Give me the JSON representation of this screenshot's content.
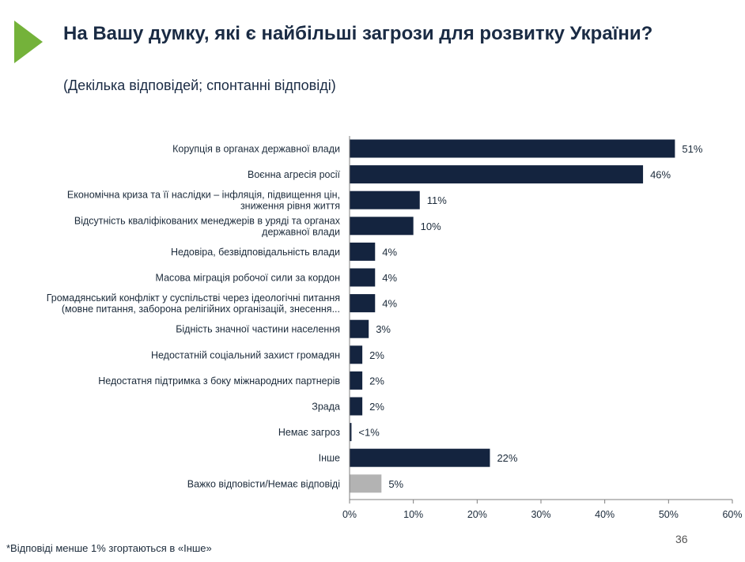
{
  "header": {
    "logo_icon": "green-triangle-arrow-icon",
    "title": "На Вашу думку, які є найбільші загрози для розвитку України?",
    "subtitle": "(Декілька відповідей; спонтанні відповіді)"
  },
  "chart_data": {
    "type": "bar",
    "orientation": "horizontal",
    "title": "",
    "xlabel": "",
    "ylabel": "",
    "xlim": [
      0,
      60
    ],
    "x_ticks": [
      "0%",
      "10%",
      "20%",
      "30%",
      "40%",
      "50%",
      "60%"
    ],
    "grid": false,
    "categories": [
      [
        "Корупція в органах державної влади"
      ],
      [
        "Воєнна агресія росії"
      ],
      [
        "Економічна криза та її наслідки – інфляція, підвищення цін,",
        "зниження рівня життя"
      ],
      [
        "Відсутність кваліфікованих менеджерів в уряді та органах",
        "державної влади"
      ],
      [
        "Недовіра, безвідповідальність влади"
      ],
      [
        "Масова міграція робочої сили за кордон"
      ],
      [
        "Громадянський конфлікт у суспільстві через ідеологічні питання",
        "(мовне питання, заборона релігійних організацій, знесення..."
      ],
      [
        "Бідність значної частини населення"
      ],
      [
        "Недостатній соціальний захист громадян"
      ],
      [
        "Недостатня підтримка з боку міжнародних партнерів"
      ],
      [
        "Зрада"
      ],
      [
        "Немає загроз"
      ],
      [
        "Інше"
      ],
      [
        "Важко відповісти/Немає відповіді"
      ]
    ],
    "values": [
      51,
      46,
      11,
      10,
      4,
      4,
      4,
      3,
      2,
      2,
      2,
      0.3,
      22,
      5
    ],
    "value_labels": [
      "51%",
      "46%",
      "11%",
      "10%",
      "4%",
      "4%",
      "4%",
      "3%",
      "2%",
      "2%",
      "2%",
      "<1%",
      "22%",
      "5%"
    ],
    "bar_colors": [
      "#14243f",
      "#14243f",
      "#14243f",
      "#14243f",
      "#14243f",
      "#14243f",
      "#14243f",
      "#14243f",
      "#14243f",
      "#14243f",
      "#14243f",
      "#14243f",
      "#14243f",
      "#b3b3b3"
    ]
  },
  "footnote": "*Відповіді менше 1% згортаються в «Інше»",
  "page_number": "36"
}
